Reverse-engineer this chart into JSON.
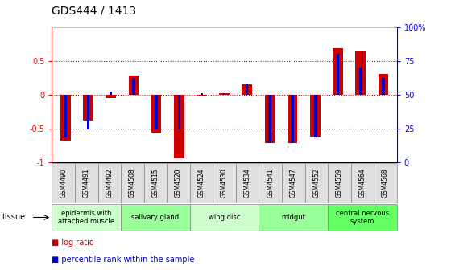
{
  "title": "GDS444 / 1413",
  "samples": [
    "GSM4490",
    "GSM4491",
    "GSM4492",
    "GSM4508",
    "GSM4515",
    "GSM4520",
    "GSM4524",
    "GSM4530",
    "GSM4534",
    "GSM4541",
    "GSM4547",
    "GSM4552",
    "GSM4559",
    "GSM4564",
    "GSM4568"
  ],
  "log_ratio": [
    -0.68,
    -0.38,
    -0.05,
    0.28,
    -0.56,
    -0.95,
    -0.02,
    0.02,
    0.15,
    -0.72,
    -0.72,
    -0.62,
    0.68,
    0.64,
    0.3
  ],
  "percentile": [
    18,
    24,
    52,
    62,
    24,
    24,
    51,
    51,
    58,
    14,
    14,
    18,
    80,
    70,
    62
  ],
  "tissue_groups": [
    {
      "label": "epidermis with\nattached muscle",
      "start": 0,
      "end": 3,
      "color": "#ccffcc"
    },
    {
      "label": "salivary gland",
      "start": 3,
      "end": 6,
      "color": "#99ff99"
    },
    {
      "label": "wing disc",
      "start": 6,
      "end": 9,
      "color": "#ccffcc"
    },
    {
      "label": "midgut",
      "start": 9,
      "end": 12,
      "color": "#99ff99"
    },
    {
      "label": "central nervous\nsystem",
      "start": 12,
      "end": 15,
      "color": "#66ff66"
    }
  ],
  "bar_color_red": "#cc0000",
  "bar_color_blue": "#0000cc",
  "ylim": [
    -1.0,
    1.0
  ],
  "yticks": [
    -1,
    -0.5,
    0,
    0.5
  ],
  "ytick_labels": [
    "-1",
    "-0.5",
    "0",
    "0.5"
  ],
  "right_yticks": [
    0,
    25,
    50,
    75,
    100
  ],
  "right_ytick_labels": [
    "0",
    "25",
    "50",
    "75",
    "100%"
  ],
  "bg_color": "#ffffff",
  "dotted_line_color": "#444444",
  "redline_color": "#cc0000"
}
